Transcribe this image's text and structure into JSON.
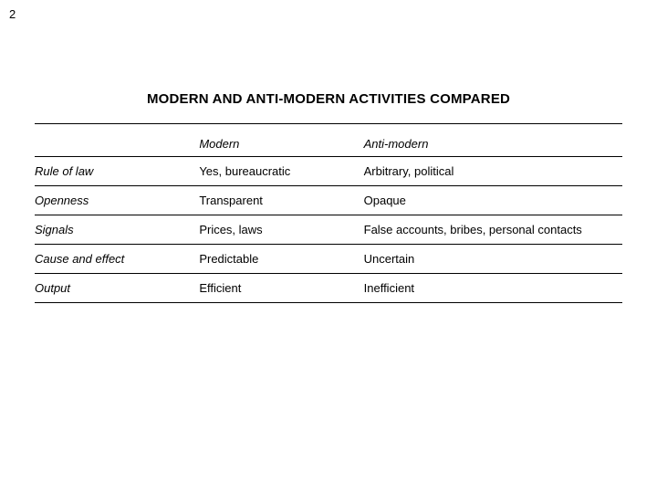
{
  "page_number": "2",
  "title": "MODERN AND ANTI-MODERN ACTIVITIES COMPARED",
  "table": {
    "type": "table",
    "background_color": "#ffffff",
    "rule_color": "#000000",
    "font_family": "Arial",
    "title_fontsize": 15,
    "body_fontsize": 13,
    "columns": [
      {
        "label": "",
        "width_pct": 28,
        "italic_header": false
      },
      {
        "label": "Modern",
        "width_pct": 28,
        "italic_header": true
      },
      {
        "label": "Anti-modern",
        "width_pct": 44,
        "italic_header": true
      }
    ],
    "rows": [
      {
        "label": "Rule of law",
        "modern": "Yes, bureaucratic",
        "anti": "Arbitrary, political"
      },
      {
        "label": "Openness",
        "modern": "Transparent",
        "anti": "Opaque"
      },
      {
        "label": "Signals",
        "modern": "Prices, laws",
        "anti": "False accounts, bribes, personal contacts"
      },
      {
        "label": "Cause and effect",
        "modern": "Predictable",
        "anti": "Uncertain"
      },
      {
        "label": "Output",
        "modern": "Efficient",
        "anti": "Inefficient"
      }
    ]
  }
}
